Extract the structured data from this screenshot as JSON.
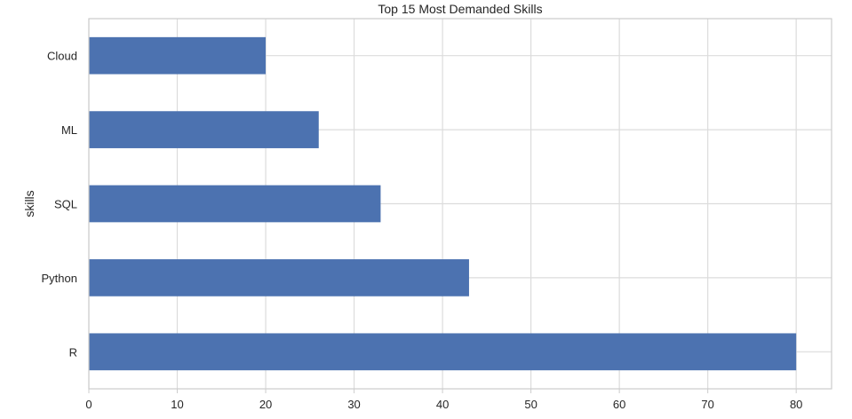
{
  "chart_data": {
    "type": "bar",
    "orientation": "horizontal",
    "title": "Top 15 Most Demanded Skills",
    "xlabel": "",
    "ylabel": "skills",
    "categories": [
      "R",
      "Python",
      "SQL",
      "ML",
      "Cloud"
    ],
    "values": [
      80,
      43,
      33,
      26,
      20
    ],
    "xlim": [
      0,
      84
    ],
    "xticks": [
      0,
      10,
      20,
      30,
      40,
      50,
      60,
      70,
      80
    ],
    "grid": true,
    "bar_color": "#4c72b0",
    "grid_color": "#dcdcdc",
    "axis_color": "#cccccc",
    "text_color": "#262626"
  }
}
